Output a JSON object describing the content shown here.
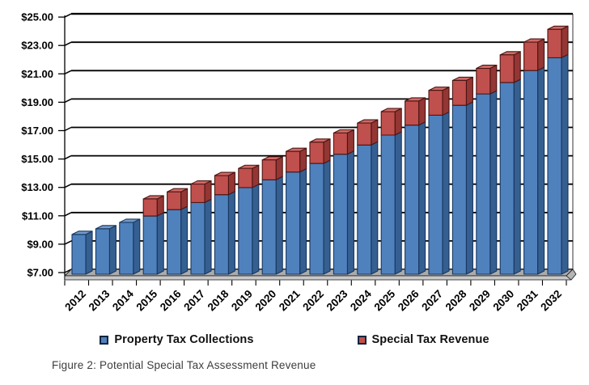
{
  "figure": {
    "caption": "Figure 2: Potential Special Tax Assessment Revenue"
  },
  "chart_data": {
    "type": "bar",
    "subtype": "stacked-3d-column",
    "title": "",
    "xlabel": "",
    "ylabel": "",
    "categories": [
      "2012",
      "2013",
      "2014",
      "2015",
      "2016",
      "2017",
      "2018",
      "2019",
      "2020",
      "2021",
      "2022",
      "2023",
      "2024",
      "2025",
      "2026",
      "2027",
      "2028",
      "2029",
      "2030",
      "2031",
      "2032"
    ],
    "series": [
      {
        "name": "Property Tax Collections",
        "color": "#4F81BD",
        "side_color": "#365F91",
        "top_color": "#729ACA",
        "border_color": "#17375E",
        "values": [
          9.8,
          10.2,
          10.65,
          11.1,
          11.55,
          12.05,
          12.6,
          13.1,
          13.65,
          14.2,
          14.8,
          15.45,
          16.1,
          16.8,
          17.5,
          18.2,
          18.9,
          19.7,
          20.5,
          21.35,
          22.25
        ]
      },
      {
        "name": "Special Tax Revenue",
        "color": "#C0504D",
        "side_color": "#943634",
        "top_color": "#D16A67",
        "border_color": "#4A1512",
        "values": [
          0,
          0,
          0,
          1.2,
          1.25,
          1.3,
          1.35,
          1.35,
          1.4,
          1.45,
          1.5,
          1.5,
          1.55,
          1.65,
          1.7,
          1.75,
          1.75,
          1.8,
          1.95,
          2.0,
          2.0
        ]
      }
    ],
    "stacked_totals": [
      9.8,
      10.2,
      10.65,
      12.3,
      12.8,
      13.35,
      13.95,
      14.45,
      15.05,
      15.65,
      16.3,
      16.95,
      17.65,
      18.45,
      19.2,
      19.95,
      20.65,
      21.5,
      22.45,
      23.35,
      24.25
    ],
    "y_ticks": [
      7,
      9,
      11,
      13,
      15,
      17,
      19,
      21,
      23,
      25
    ],
    "y_tick_labels": [
      "$7.00",
      "$9.00",
      "$11.00",
      "$13.00",
      "$15.00",
      "$17.00",
      "$19.00",
      "$21.00",
      "$23.00",
      "$25.00"
    ],
    "ylim": [
      7,
      25
    ],
    "grid": true,
    "gridline_color": "#000000",
    "floor_color": "#ABABAB",
    "legend_position": "bottom",
    "x_label_rotation": -45
  }
}
